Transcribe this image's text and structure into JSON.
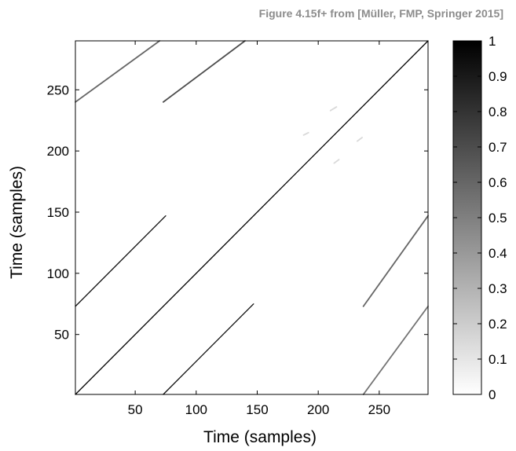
{
  "caption": "Figure 4.15f+ from [Müller, FMP, Springer 2015]",
  "chart_data": {
    "type": "heatmap",
    "title": "",
    "xlabel": "Time (samples)",
    "ylabel": "Time (samples)",
    "xlim": [
      1,
      290
    ],
    "ylim": [
      1,
      290
    ],
    "xticks": [
      50,
      100,
      150,
      200,
      250
    ],
    "yticks": [
      50,
      100,
      150,
      200,
      250
    ],
    "colorbar": {
      "range": [
        0,
        1
      ],
      "ticks": [
        0,
        0.1,
        0.2,
        0.3,
        0.4,
        0.5,
        0.6,
        0.7,
        0.8,
        0.9,
        1
      ],
      "tick_labels": [
        "0",
        "0.1",
        "0.2",
        "0.3",
        "0.4",
        "0.5",
        "0.6",
        "0.7",
        "0.8",
        "0.9",
        "1"
      ],
      "colormap": [
        "#ffffff",
        "#000000"
      ]
    },
    "paths": [
      {
        "points": [
          [
            1,
            1
          ],
          [
            290,
            290
          ]
        ],
        "value": 1.0
      },
      {
        "points": [
          [
            1,
            73
          ],
          [
            75,
            147
          ]
        ],
        "value": 0.95
      },
      {
        "points": [
          [
            73,
            1
          ],
          [
            147,
            75
          ]
        ],
        "value": 0.95
      },
      {
        "points": [
          [
            1,
            240
          ],
          [
            70,
            290
          ]
        ],
        "value": 0.6
      },
      {
        "points": [
          [
            73,
            240
          ],
          [
            140,
            290
          ]
        ],
        "value": 0.7
      },
      {
        "points": [
          [
            237,
            73
          ],
          [
            290,
            147
          ]
        ],
        "value": 0.6
      },
      {
        "points": [
          [
            237,
            1
          ],
          [
            290,
            73
          ]
        ],
        "value": 0.55
      },
      {
        "points": [
          [
            188,
            213
          ],
          [
            192,
            215
          ]
        ],
        "value": 0.15
      },
      {
        "points": [
          [
            210,
            233
          ],
          [
            215,
            236
          ]
        ],
        "value": 0.15
      },
      {
        "points": [
          [
            213,
            190
          ],
          [
            217,
            193
          ]
        ],
        "value": 0.15
      },
      {
        "points": [
          [
            232,
            208
          ],
          [
            236,
            211
          ]
        ],
        "value": 0.15
      }
    ]
  }
}
